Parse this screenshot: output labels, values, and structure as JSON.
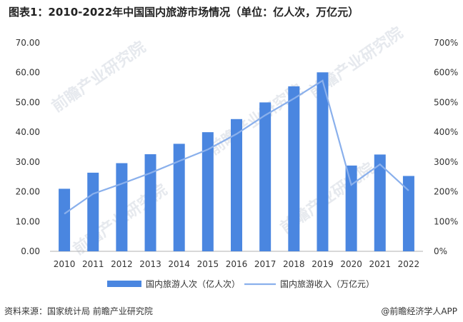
{
  "title": "图表1：2010-2022年中国国内旅游市场情况（单位：亿人次，万亿元）",
  "source": "资料来源：国家统计局 前瞻产业研究院",
  "brand": "@前瞻经济学人APP",
  "watermark": "前瞻产业研究院",
  "colors": {
    "bar": "#4a86e0",
    "line": "#8ab0ec",
    "axis": "#b0b0b0",
    "text": "#333333"
  },
  "chart_data": {
    "type": "bar",
    "categories": [
      "2010",
      "2011",
      "2012",
      "2013",
      "2014",
      "2015",
      "2016",
      "2017",
      "2018",
      "2019",
      "2020",
      "2021",
      "2022"
    ],
    "series": [
      {
        "name": "国内旅游人次（亿人次）",
        "type": "bar",
        "axis": "left",
        "values": [
          21.0,
          26.4,
          29.6,
          32.6,
          36.1,
          40.0,
          44.4,
          50.0,
          55.4,
          60.1,
          28.8,
          32.5,
          25.3
        ]
      },
      {
        "name": "国内旅游收入（万亿元）",
        "type": "line",
        "axis": "right",
        "values": [
          1.26,
          1.93,
          2.27,
          2.63,
          3.03,
          3.42,
          3.94,
          4.57,
          5.13,
          5.73,
          2.23,
          2.92,
          2.04
        ]
      }
    ],
    "y_left": {
      "min": 0,
      "max": 70,
      "ticks": [
        "0.00",
        "10.00",
        "20.00",
        "30.00",
        "40.00",
        "50.00",
        "60.00",
        "70.00"
      ]
    },
    "y_right": {
      "min": 0,
      "max": 7,
      "ticks": [
        "0%",
        "100%",
        "200%",
        "300%",
        "400%",
        "500%",
        "600%",
        "700%"
      ]
    },
    "legend_position": "bottom",
    "grid": false
  }
}
